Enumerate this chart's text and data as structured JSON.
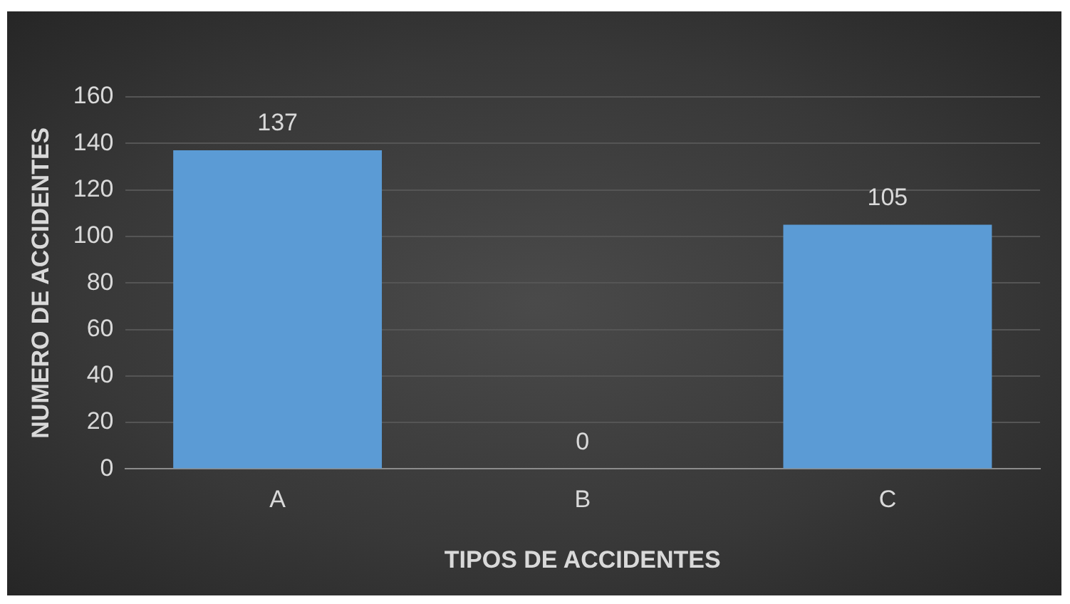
{
  "chart_data": {
    "type": "bar",
    "xlabel": "TIPOS DE ACCIDENTES",
    "ylabel": "NUMERO DE ACCIDENTES",
    "categories": [
      "A",
      "B",
      "C"
    ],
    "values": [
      137,
      0,
      105
    ],
    "color": "#5b9bd5",
    "ylim": [
      0,
      160
    ],
    "yticks": [
      0,
      20,
      40,
      60,
      80,
      100,
      120,
      140,
      160
    ],
    "grid": "y",
    "legend": false,
    "data_labels": true
  }
}
